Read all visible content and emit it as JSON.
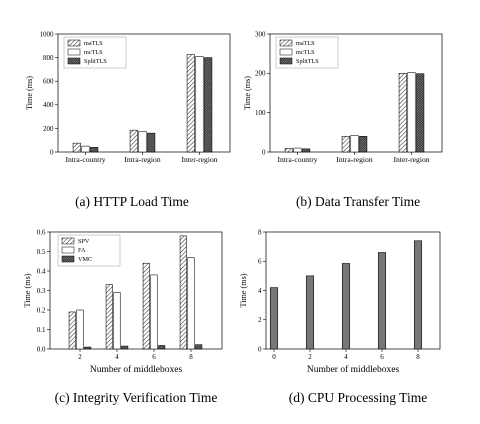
{
  "colors": {
    "bar_dark": "#777777",
    "stroke": "#000000",
    "bg": "#ffffff"
  },
  "chart_data": [
    {
      "id": "a",
      "type": "bar",
      "caption": "(a) HTTP Load Time",
      "xlabel": "",
      "ylabel": "Time (ms)",
      "ylim": [
        0,
        1000
      ],
      "yticks": [
        "0",
        "200",
        "400",
        "600",
        "800",
        "1000"
      ],
      "categories": [
        "Intra-country",
        "Intra-region",
        "Inter-region"
      ],
      "legend_position": "top-left",
      "series": [
        {
          "name": "maTLS",
          "pattern": "diag",
          "values": [
            75,
            185,
            825
          ]
        },
        {
          "name": "mcTLS",
          "pattern": "white",
          "values": [
            50,
            175,
            810
          ]
        },
        {
          "name": "SplitTLS",
          "pattern": "cross",
          "values": [
            40,
            160,
            800
          ]
        }
      ]
    },
    {
      "id": "b",
      "type": "bar",
      "caption": "(b) Data Transfer Time",
      "xlabel": "",
      "ylabel": "Time (ms)",
      "ylim": [
        0,
        300
      ],
      "yticks": [
        "0",
        "100",
        "200",
        "300"
      ],
      "categories": [
        "Intra-country",
        "Intra-region",
        "Inter-region"
      ],
      "legend_position": "top-left",
      "series": [
        {
          "name": "maTLS",
          "pattern": "diag",
          "values": [
            9,
            40,
            200
          ]
        },
        {
          "name": "mcTLS",
          "pattern": "white",
          "values": [
            10,
            42,
            202
          ]
        },
        {
          "name": "SplitTLS",
          "pattern": "cross",
          "values": [
            8,
            40,
            199
          ]
        }
      ]
    },
    {
      "id": "c",
      "type": "bar",
      "caption": "(c) Integrity Verification Time",
      "xlabel": "Number of middleboxes",
      "ylabel": "Time (ms)",
      "ylim": [
        0,
        0.6
      ],
      "yticks": [
        "0.0",
        "0.1",
        "0.2",
        "0.3",
        "0.4",
        "0.5",
        "0.6"
      ],
      "categories": [
        "2",
        "4",
        "6",
        "8"
      ],
      "legend_position": "top-left",
      "series": [
        {
          "name": "SPV",
          "pattern": "diag",
          "values": [
            0.19,
            0.33,
            0.44,
            0.58
          ]
        },
        {
          "name": "FA",
          "pattern": "white",
          "values": [
            0.2,
            0.29,
            0.38,
            0.47
          ]
        },
        {
          "name": "VMC",
          "pattern": "cross",
          "values": [
            0.01,
            0.015,
            0.018,
            0.022
          ]
        }
      ]
    },
    {
      "id": "d",
      "type": "bar",
      "caption": "(d) CPU Processing Time",
      "xlabel": "Number of middleboxes",
      "ylabel": "Time (ms)",
      "ylim": [
        0,
        8
      ],
      "yticks": [
        "0",
        "2",
        "4",
        "6",
        "8"
      ],
      "categories": [
        "0",
        "2",
        "4",
        "6",
        "8"
      ],
      "legend_position": "none",
      "series": [
        {
          "name": "",
          "pattern": "dark",
          "values": [
            4.2,
            5.0,
            5.85,
            6.6,
            7.4
          ]
        }
      ]
    }
  ]
}
